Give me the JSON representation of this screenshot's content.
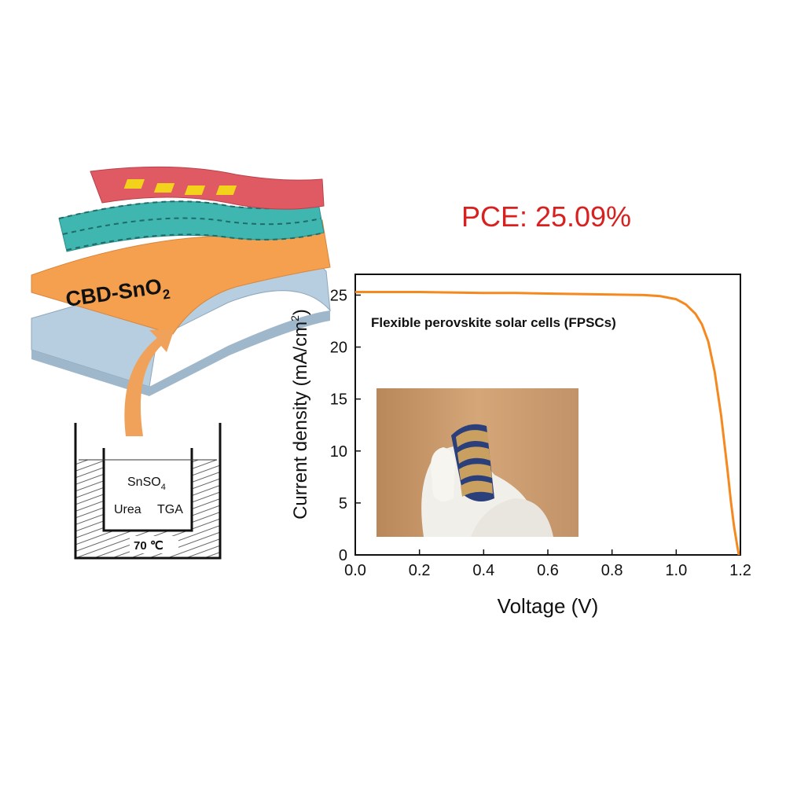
{
  "schematic": {
    "layer_label_main": "CBD-SnO",
    "layer_label_sub": "2",
    "bath": {
      "reagent_main": "SnSO",
      "reagent_sub": "4",
      "reagent_2": "Urea",
      "reagent_3": "TGA",
      "temperature": "70 ℃"
    },
    "colors": {
      "electrode": "#e05a64",
      "contacts": "#f2d21b",
      "perovskite": "#3fb6b0",
      "sno2_layer": "#f5a04e",
      "substrate": "#b7cde0",
      "arrow": "#f0a25a"
    }
  },
  "pce_label": "PCE: 25.09%",
  "chart_data": {
    "type": "line",
    "xlabel": "Voltage (V)",
    "ylabel_main": "Current density (mA/cm",
    "ylabel_sup": "2",
    "ylabel_end": ")",
    "xlim": [
      0.0,
      1.2
    ],
    "ylim": [
      0,
      27
    ],
    "xticks": [
      "0.0",
      "0.2",
      "0.4",
      "0.6",
      "0.8",
      "1.0",
      "1.2"
    ],
    "yticks": [
      "0",
      "5",
      "10",
      "15",
      "20",
      "25"
    ],
    "annotation": "Flexible perovskite solar cells (FPSCs)",
    "series": [
      {
        "color": "#f5891f",
        "x": [
          0.0,
          0.1,
          0.2,
          0.3,
          0.4,
          0.5,
          0.6,
          0.7,
          0.8,
          0.9,
          0.95,
          1.0,
          1.03,
          1.06,
          1.08,
          1.1,
          1.12,
          1.14,
          1.16,
          1.17,
          1.18,
          1.19,
          1.195
        ],
        "y": [
          25.3,
          25.3,
          25.3,
          25.25,
          25.2,
          25.2,
          25.15,
          25.1,
          25.05,
          25.0,
          24.9,
          24.6,
          24.1,
          23.2,
          22.2,
          20.5,
          17.6,
          13.4,
          8.1,
          5.2,
          2.8,
          0.9,
          0.0
        ]
      }
    ]
  }
}
